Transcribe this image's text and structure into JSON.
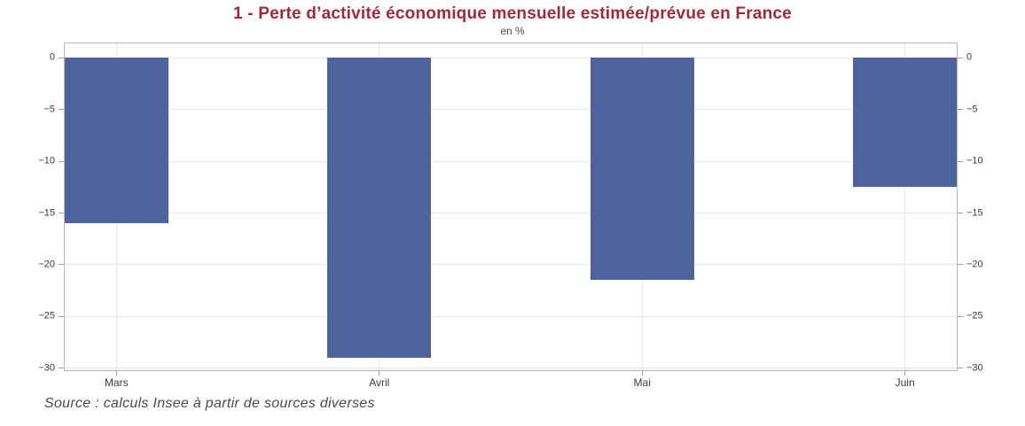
{
  "page": {
    "title": "1 - Perte d’activité économique mensuelle estimée/prévue en France",
    "subtitle": "en %",
    "source_note": "Source : calculs Insee à partir de sources diverses"
  },
  "colors": {
    "title": "#9e2a3a",
    "bar": "#4f639f",
    "gridline": "#ebe8e2",
    "plot_border": "#bcb6ab",
    "tick_mark": "#a8a198",
    "tick_label": "#3a3a3a",
    "subtitle_text": "#4c4c4c",
    "source_text": "#4a4a4a",
    "background": "#ffffff"
  },
  "chart_data": {
    "type": "bar",
    "title": "1 - Perte d’activité économique mensuelle estimée/prévue en France",
    "subtitle": "en %",
    "unit": "%",
    "categories": [
      "Mars",
      "Avril",
      "Mai",
      "Juin"
    ],
    "values": [
      -16,
      -29,
      -21.5,
      -12.5
    ],
    "xlabel": "",
    "ylabel": "en %",
    "ylim": [
      -30.2,
      1.4
    ],
    "yticks": [
      0,
      -5,
      -10,
      -15,
      -20,
      -25,
      -30
    ],
    "grid": true,
    "legend": "none",
    "bar_width_pct": 11.6,
    "bar_color": "#4f639f"
  }
}
